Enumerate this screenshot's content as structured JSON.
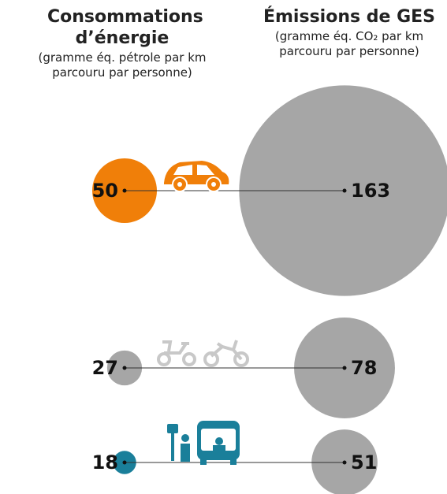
{
  "chart_data": {
    "type": "bubble",
    "series": [
      {
        "name": "Consommations d’énergie",
        "subtitle": "(gramme éq. pétrole par km parcouru par personne)",
        "values": [
          50,
          27,
          18
        ],
        "colors": [
          "#f07f09",
          "#a6a6a6",
          "#1a7f9a"
        ]
      },
      {
        "name": "Émissions de GES",
        "subtitle": "(gramme éq. CO₂ par km parcouru par personne)",
        "values": [
          163,
          78,
          51
        ],
        "color": "#a6a6a6"
      }
    ]
  }
}
